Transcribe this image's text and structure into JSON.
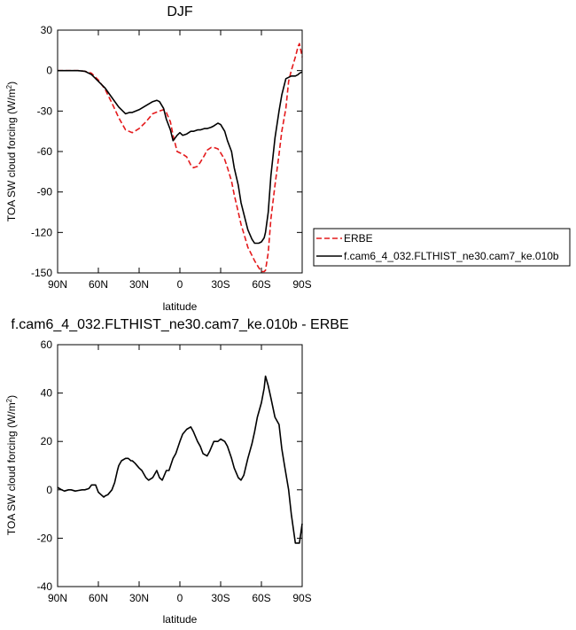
{
  "chart_data": [
    {
      "type": "line",
      "title": "DJF",
      "xlabel": "latitude",
      "ylabel": "TOA SW cloud forcing (W/m",
      "ylabel_sup": "2",
      "ylabel_close": ")",
      "xlim": [
        -90,
        90
      ],
      "ylim": [
        -150,
        30
      ],
      "x_ticks": [
        {
          "value": -90,
          "label": "90N"
        },
        {
          "value": -60,
          "label": "60N"
        },
        {
          "value": -30,
          "label": "30N"
        },
        {
          "value": 0,
          "label": "0"
        },
        {
          "value": 30,
          "label": "30S"
        },
        {
          "value": 60,
          "label": "60S"
        },
        {
          "value": 90,
          "label": "90S"
        }
      ],
      "y_ticks": [
        30,
        0,
        -30,
        -60,
        -90,
        -120,
        -150
      ],
      "grid": false,
      "legend_position": "right",
      "series": [
        {
          "name": "ERBE",
          "color": "#e41a1c",
          "dash": "dashed",
          "x": [
            -90,
            -85,
            -80,
            -75,
            -70,
            -65,
            -60,
            -55,
            -50,
            -45,
            -40,
            -35,
            -30,
            -25,
            -20,
            -15,
            -12,
            -10,
            -7,
            -5,
            -2,
            0,
            2,
            5,
            8,
            10,
            13,
            15,
            18,
            20,
            23,
            25,
            28,
            30,
            33,
            35,
            38,
            40,
            43,
            45,
            48,
            50,
            53,
            55,
            58,
            60,
            62,
            63,
            65,
            67,
            70,
            73,
            75,
            78,
            80,
            82,
            85,
            87,
            88,
            90
          ],
          "y": [
            0,
            0,
            0,
            0,
            -0.5,
            -2,
            -7,
            -14,
            -24,
            -35,
            -44,
            -46,
            -43,
            -38,
            -32,
            -30,
            -29,
            -31,
            -38,
            -48,
            -60,
            -61,
            -62,
            -64,
            -70,
            -72,
            -71,
            -68,
            -63,
            -59,
            -57,
            -57,
            -58,
            -61,
            -66,
            -72,
            -82,
            -92,
            -105,
            -114,
            -124,
            -131,
            -137,
            -141,
            -146,
            -149,
            -149,
            -148,
            -135,
            -110,
            -85,
            -62,
            -45,
            -28,
            -8,
            0,
            10,
            18,
            20,
            10
          ]
        },
        {
          "name": "f.cam6_4_032.FLTHIST_ne30.cam7_ke.010b",
          "color": "#000000",
          "dash": "solid",
          "x": [
            -90,
            -85,
            -80,
            -75,
            -70,
            -65,
            -60,
            -55,
            -50,
            -45,
            -40,
            -37,
            -35,
            -30,
            -25,
            -20,
            -17,
            -15,
            -12,
            -10,
            -7,
            -5,
            -2,
            0,
            2,
            5,
            8,
            10,
            13,
            15,
            18,
            20,
            23,
            25,
            28,
            30,
            33,
            35,
            38,
            40,
            43,
            45,
            48,
            50,
            53,
            55,
            58,
            60,
            62,
            63,
            65,
            67,
            70,
            73,
            75,
            78,
            80,
            82,
            85,
            87,
            88,
            90
          ],
          "y": [
            0,
            0,
            0,
            0,
            -0.5,
            -3,
            -8,
            -13,
            -20,
            -27,
            -32,
            -31,
            -31,
            -29,
            -26,
            -23,
            -22,
            -23,
            -28,
            -36,
            -44,
            -52,
            -48,
            -46,
            -48,
            -47,
            -45,
            -45,
            -44,
            -44,
            -43,
            -43,
            -42,
            -41,
            -39,
            -40,
            -45,
            -52,
            -60,
            -72,
            -85,
            -98,
            -110,
            -118,
            -125,
            -128,
            -128,
            -127,
            -124,
            -120,
            -105,
            -78,
            -50,
            -30,
            -18,
            -6,
            -5,
            -4,
            -4,
            -3,
            -2,
            -1
          ]
        }
      ]
    },
    {
      "type": "line",
      "title": "f.cam6_4_032.FLTHIST_ne30.cam7_ke.010b - ERBE",
      "xlabel": "latitude",
      "ylabel": "TOA SW cloud forcing (W/m",
      "ylabel_sup": "2",
      "ylabel_close": ")",
      "xlim": [
        -90,
        90
      ],
      "ylim": [
        -40,
        60
      ],
      "x_ticks": [
        {
          "value": -90,
          "label": "90N"
        },
        {
          "value": -60,
          "label": "60N"
        },
        {
          "value": -30,
          "label": "30N"
        },
        {
          "value": 0,
          "label": "0"
        },
        {
          "value": 30,
          "label": "30S"
        },
        {
          "value": 60,
          "label": "60S"
        },
        {
          "value": 90,
          "label": "90S"
        }
      ],
      "y_ticks": [
        60,
        40,
        20,
        0,
        -20,
        -40
      ],
      "grid": false,
      "series": [
        {
          "color": "#000000",
          "dash": "solid",
          "x": [
            -90,
            -87,
            -85,
            -82,
            -80,
            -77,
            -75,
            -72,
            -70,
            -67,
            -65,
            -62,
            -60,
            -58,
            -56,
            -55,
            -53,
            -50,
            -48,
            -46,
            -45,
            -43,
            -40,
            -38,
            -36,
            -35,
            -33,
            -30,
            -28,
            -25,
            -23,
            -20,
            -17,
            -15,
            -13,
            -10,
            -8,
            -5,
            -3,
            0,
            2,
            5,
            8,
            10,
            13,
            15,
            17,
            20,
            22,
            25,
            28,
            30,
            33,
            35,
            38,
            40,
            43,
            45,
            47,
            50,
            53,
            55,
            57,
            60,
            62,
            63,
            65,
            67,
            70,
            73,
            75,
            77,
            80,
            82,
            85,
            87,
            88,
            90
          ],
          "y": [
            1,
            0,
            -0.5,
            0,
            0,
            -0.5,
            -0.3,
            0,
            0,
            0.5,
            2,
            2,
            -1,
            -2,
            -3,
            -2.5,
            -2,
            0,
            3,
            8,
            10,
            12,
            13,
            13,
            12,
            12,
            11,
            9,
            8,
            5,
            4,
            5,
            8,
            5,
            4,
            8,
            8,
            13,
            15,
            20,
            23,
            25,
            26,
            24,
            20,
            18,
            15,
            14,
            16,
            20,
            20,
            21,
            20,
            18,
            13,
            9,
            5,
            4,
            6,
            13,
            19,
            24,
            30,
            36,
            42,
            47,
            43,
            38,
            30,
            27,
            17,
            10,
            0,
            -10,
            -22,
            -22,
            -22,
            -14
          ]
        }
      ]
    }
  ]
}
